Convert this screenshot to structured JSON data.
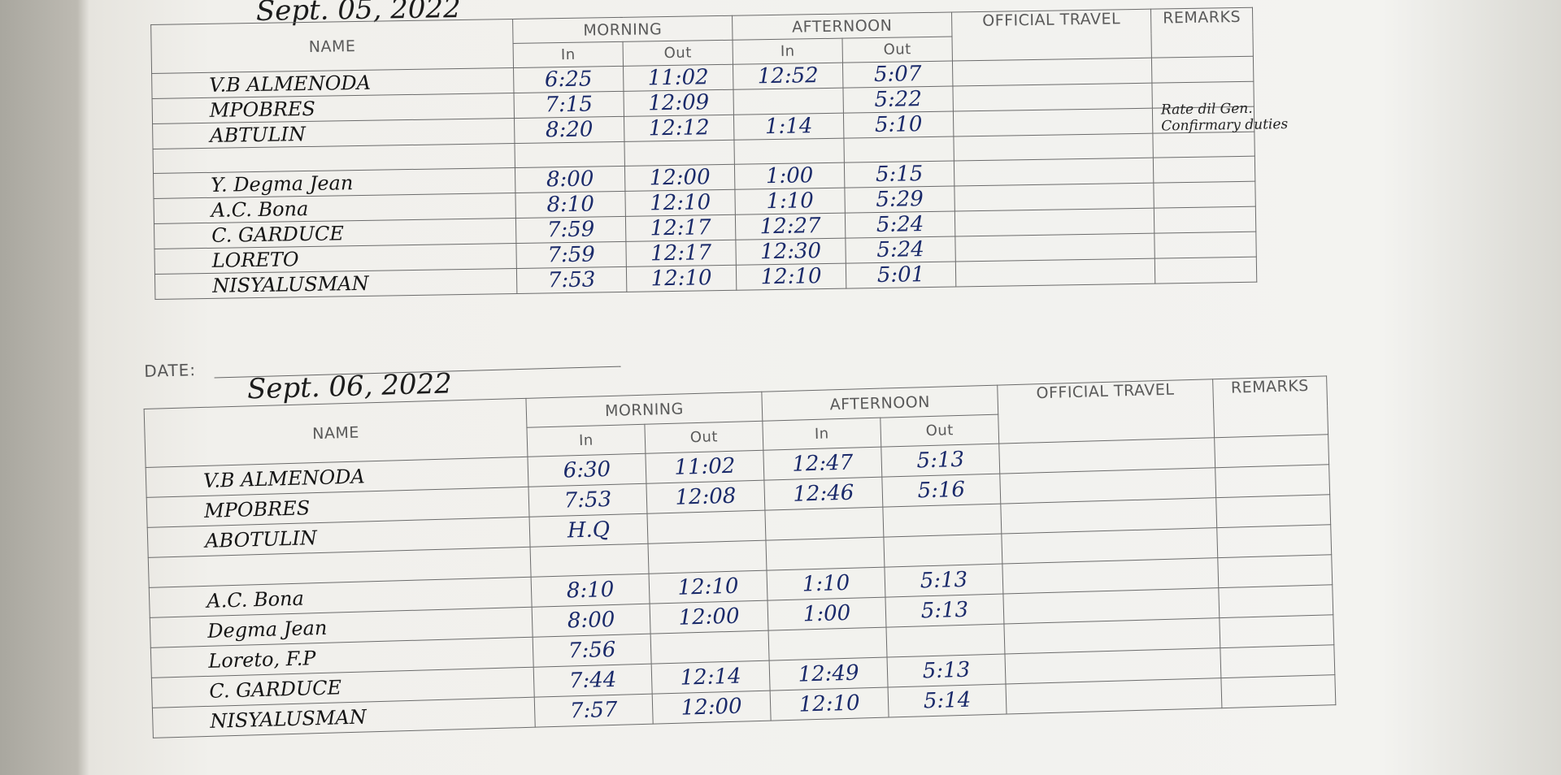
{
  "sheets": [
    {
      "date": "Sept. 05, 2022",
      "headers": {
        "name": "NAME",
        "morning": "MORNING",
        "afternoon": "AFTERNOON",
        "official_travel": "OFFICIAL TRAVEL",
        "remarks": "REMARKS",
        "in_1": "In",
        "out_1": "Out",
        "in_2": "In",
        "out_2": "Out"
      },
      "rows": [
        {
          "name": "V.B ALMENODA",
          "morning_in": "6:25",
          "morning_out": "11:02",
          "afternoon_in": "12:52",
          "afternoon_out": "5:07"
        },
        {
          "name": "MPOBRES",
          "morning_in": "7:15",
          "morning_out": "12:09",
          "afternoon_out": "5:22"
        },
        {
          "name": "ABTULIN",
          "morning_in": "8:20",
          "morning_out": "12:12",
          "afternoon_in": "1:14",
          "afternoon_out": "5:10",
          "remarks": "Rate dil Gen. Confirmary duties"
        },
        {
          "name": "Y. Degma Jean",
          "morning_in": "8:00",
          "morning_out": "12:00",
          "afternoon_in": "1:00",
          "afternoon_out": "5:15"
        },
        {
          "name": "A.C. Bona",
          "morning_in": "8:10",
          "morning_out": "12:10",
          "afternoon_in": "1:10",
          "afternoon_out": "5:29"
        },
        {
          "name": "C. GARDUCE",
          "morning_in": "7:59",
          "morning_out": "12:17",
          "afternoon_in": "12:27",
          "afternoon_out": "5:24"
        },
        {
          "name": "LORETO",
          "morning_in": "7:59",
          "morning_out": "12:17",
          "afternoon_in": "12:30",
          "afternoon_out": "5:24"
        },
        {
          "name": "NISYALUSMAN",
          "morning_in": "7:53",
          "morning_out": "12:10",
          "afternoon_in": "12:10",
          "afternoon_out": "5:01"
        }
      ]
    },
    {
      "date_label": "DATE:",
      "date": "Sept. 06, 2022",
      "headers": {
        "name": "NAME",
        "morning": "MORNING",
        "afternoon": "AFTERNOON",
        "official_travel": "OFFICIAL TRAVEL",
        "remarks": "REMARKS",
        "in_1": "In",
        "out_1": "Out",
        "in_2": "In",
        "out_2": "Out"
      },
      "rows": [
        {
          "name": "V.B ALMENODA",
          "morning_in": "6:30",
          "morning_out": "11:02",
          "afternoon_in": "12:47",
          "afternoon_out": "5:13"
        },
        {
          "name": "MPOBRES",
          "morning_in": "7:53",
          "morning_out": "12:08",
          "afternoon_in": "12:46",
          "afternoon_out": "5:16"
        },
        {
          "name": "ABOTULIN",
          "morning_in": "H.Q"
        },
        {
          "name": "A.C. Bona",
          "morning_in": "8:10",
          "morning_out": "12:10",
          "afternoon_in": "1:10",
          "afternoon_out": "5:13"
        },
        {
          "name": "Degma Jean",
          "morning_in": "8:00",
          "morning_out": "12:00",
          "afternoon_in": "1:00",
          "afternoon_out": "5:13"
        },
        {
          "name": "Loreto, F.P",
          "morning_in": "7:56"
        },
        {
          "name": "C. GARDUCE",
          "morning_in": "7:44",
          "morning_out": "12:14",
          "afternoon_in": "12:49",
          "afternoon_out": "5:13"
        },
        {
          "name": "NISYALUSMAN",
          "morning_in": "7:57",
          "morning_out": "12:00",
          "afternoon_in": "12:10",
          "afternoon_out": "5:14"
        }
      ]
    }
  ]
}
